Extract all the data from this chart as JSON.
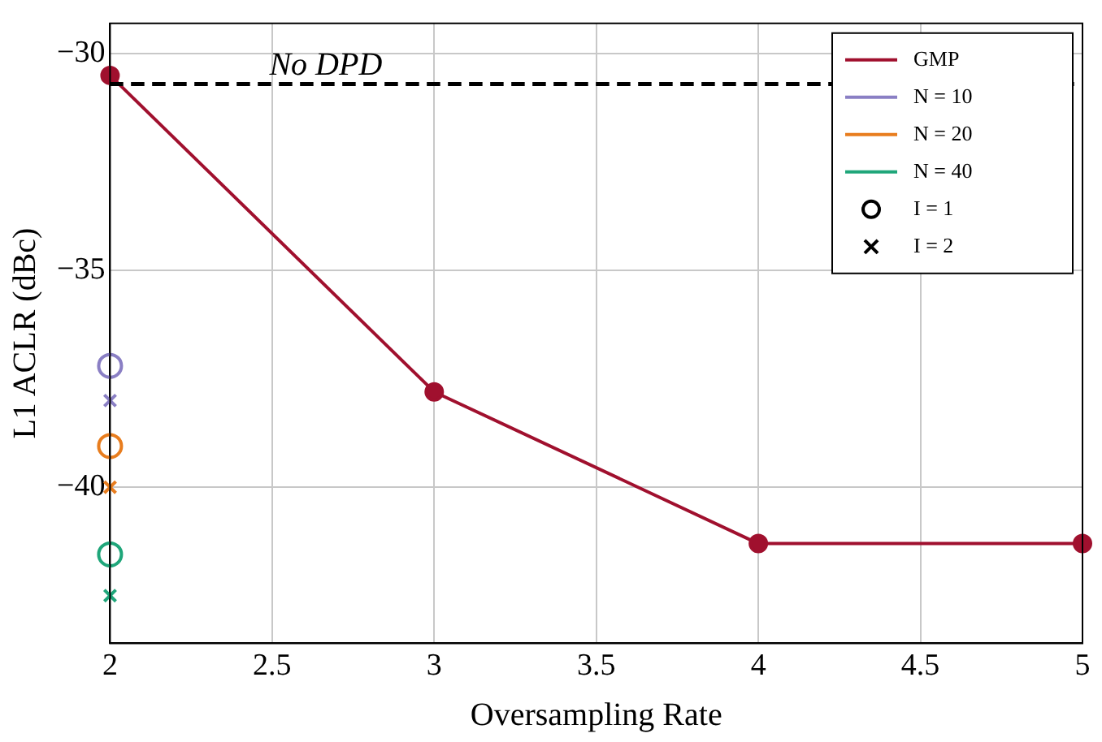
{
  "chart_data": {
    "type": "line",
    "xlabel": "Oversampling Rate",
    "ylabel": "L1 ACLR (dBc)",
    "xlim": [
      2,
      5
    ],
    "xticks": [
      2,
      2.5,
      3,
      3.5,
      4,
      4.5,
      5
    ],
    "ylim": [
      -43.6,
      -29.3
    ],
    "yticks": [
      -40,
      -35,
      -30
    ],
    "grid": true,
    "legend": "top right",
    "ref_lines": [
      {
        "axis": "y",
        "value": -30.7,
        "label": "No DPD",
        "color": "#000000",
        "line_style": "dashed"
      }
    ],
    "series": [
      {
        "name": "GMP",
        "color": "#a0102e",
        "marker": "circle",
        "x": [
          2,
          3,
          4,
          5
        ],
        "values": [
          -30.5,
          -37.8,
          -41.3,
          -41.3
        ]
      },
      {
        "name": "N = 10",
        "type": "scatter",
        "color": "#8a7fc4",
        "marker": "circle",
        "x": [
          2
        ],
        "values": [
          -37.2
        ]
      },
      {
        "type": "scatter",
        "color": "#8a7fc4",
        "marker": "cross",
        "x": [
          2
        ],
        "values": [
          -38.0
        ]
      },
      {
        "name": "N = 20",
        "type": "scatter",
        "color": "#e87d1e",
        "marker": "circle",
        "x": [
          2
        ],
        "values": [
          -39.05
        ]
      },
      {
        "type": "scatter",
        "color": "#e87d1e",
        "marker": "cross",
        "x": [
          2
        ],
        "values": [
          -40.0
        ]
      },
      {
        "name": "N = 40",
        "type": "scatter",
        "color": "#1fa67a",
        "marker": "circle",
        "x": [
          2
        ],
        "values": [
          -41.55
        ]
      },
      {
        "type": "scatter",
        "color": "#1fa67a",
        "marker": "cross",
        "x": [
          2
        ],
        "values": [
          -42.5
        ]
      },
      {
        "name": "I = 1",
        "type": "scatter",
        "color": "#000000",
        "marker": "circle"
      },
      {
        "name": "I = 2",
        "type": "scatter",
        "color": "#000000",
        "marker": "cross"
      }
    ]
  }
}
